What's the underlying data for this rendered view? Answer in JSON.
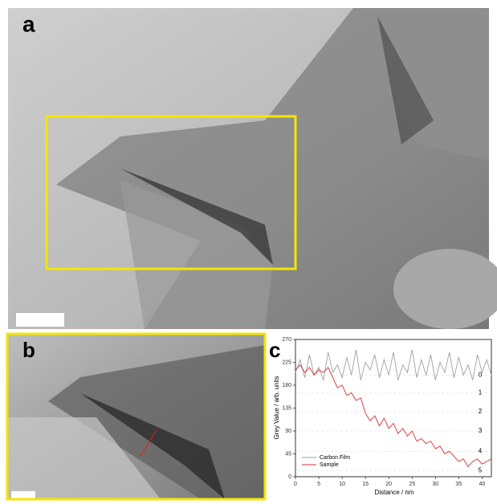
{
  "panel_labels": [
    "a",
    "b",
    "c"
  ],
  "chart_data": {
    "type": "line",
    "x_label": "Distance / nm",
    "y_label": "Grey Value / arb. units",
    "x": [
      0,
      1,
      2,
      3,
      4,
      5,
      6,
      7,
      8,
      9,
      10,
      11,
      12,
      13,
      14,
      15,
      16,
      17,
      18,
      19,
      20,
      21,
      22,
      23,
      24,
      25,
      26,
      27,
      28,
      29,
      30,
      31,
      32,
      33,
      34,
      35,
      36,
      37,
      38,
      39,
      40,
      41,
      42
    ],
    "series": [
      {
        "name": "Carbon Film",
        "color": "#a0a0a0",
        "values": [
          205,
          230,
          195,
          240,
          200,
          215,
          190,
          245,
          205,
          220,
          195,
          235,
          200,
          250,
          190,
          225,
          210,
          240,
          195,
          230,
          200,
          245,
          190,
          220,
          205,
          250,
          195,
          230,
          200,
          240,
          190,
          225,
          205,
          245,
          195,
          235,
          200,
          220,
          190,
          240,
          205,
          230,
          200
        ]
      },
      {
        "name": "Sample",
        "color": "#d83030",
        "values": [
          210,
          220,
          205,
          215,
          200,
          210,
          205,
          215,
          195,
          175,
          180,
          160,
          165,
          150,
          155,
          125,
          110,
          120,
          100,
          115,
          95,
          105,
          85,
          95,
          80,
          90,
          70,
          75,
          65,
          70,
          55,
          60,
          45,
          50,
          40,
          30,
          35,
          20,
          30,
          35,
          25,
          30,
          35
        ]
      }
    ],
    "xlim": [
      0,
      42
    ],
    "ylim": [
      0,
      270
    ],
    "xticks": [
      0,
      5,
      10,
      15,
      20,
      25,
      30,
      35,
      40
    ],
    "yticks": [
      0,
      45,
      90,
      135,
      180,
      225,
      270
    ],
    "annotations": [
      {
        "text": "0",
        "y": 200
      },
      {
        "text": "1",
        "y": 165
      },
      {
        "text": "2",
        "y": 128
      },
      {
        "text": "3",
        "y": 90
      },
      {
        "text": "4",
        "y": 50
      },
      {
        "text": "5",
        "y": 12
      }
    ],
    "legend": "lower left"
  }
}
